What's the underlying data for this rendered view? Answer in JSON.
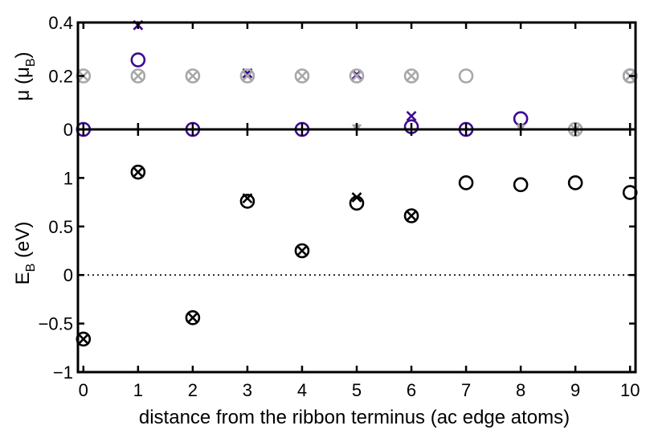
{
  "chart_data": [
    {
      "type": "scatter",
      "panel": "top",
      "ylabel": "μ",
      "ylabel_paren": "μ",
      "ylabel_sub": "B",
      "ylim": [
        0,
        0.4
      ],
      "xlim": [
        -0.1,
        10.1
      ],
      "yticks": [
        0,
        0.2,
        0.4
      ],
      "ytick_labels": [
        "0",
        "0.2",
        "0.4"
      ],
      "grid": false,
      "colors": {
        "purple": "#3d0a91",
        "gray": "#a8a8a8"
      },
      "series": [
        {
          "marker": "x",
          "color": "purple",
          "x": [
            1,
            3,
            5,
            6,
            10
          ],
          "y": [
            0.39,
            0.21,
            0.205,
            0.05,
            0.2
          ]
        },
        {
          "marker": "o",
          "color": "purple",
          "x": [
            0,
            1,
            2,
            4,
            6,
            7,
            8,
            10
          ],
          "y": [
            0,
            0.26,
            0,
            0,
            0.01,
            0,
            0.04,
            0.2
          ]
        },
        {
          "marker": "otimes",
          "color": "gray",
          "x": [
            0,
            1,
            2,
            3,
            4,
            5,
            6,
            10
          ],
          "y": [
            0.2,
            0.2,
            0.2,
            0.2,
            0.2,
            0.2,
            0.2,
            0.2
          ]
        },
        {
          "marker": "o",
          "color": "gray",
          "x": [
            7
          ],
          "y": [
            0.2
          ]
        },
        {
          "marker": "otimes",
          "color": "gray",
          "x": [
            9
          ],
          "y": [
            0
          ]
        },
        {
          "marker": "tri",
          "color": "gray",
          "x": [
            5,
            8
          ],
          "y": [
            0,
            0
          ]
        }
      ]
    },
    {
      "type": "scatter",
      "panel": "bottom",
      "xlabel": "distance from the ribbon terminus (ac edge atoms)",
      "ylabel": "E",
      "ylabel_sub": "B",
      "ylabel_suffix": " (eV)",
      "xlim": [
        -0.1,
        10.1
      ],
      "ylim": [
        -1,
        1.5
      ],
      "xticks": [
        0,
        1,
        2,
        3,
        4,
        5,
        6,
        7,
        8,
        9,
        10
      ],
      "xtick_labels": [
        "0",
        "1",
        "2",
        "3",
        "4",
        "5",
        "6",
        "7",
        "8",
        "9",
        "10"
      ],
      "yticks": [
        -1,
        -0.5,
        0,
        0.5,
        1
      ],
      "ytick_labels": [
        "−1",
        "−0.5",
        "0",
        "0.5",
        "1"
      ],
      "reference_line": {
        "y": 0,
        "style": "dotted"
      },
      "grid": false,
      "colors": {
        "black": "#000000"
      },
      "series": [
        {
          "marker": "otimes",
          "color": "black",
          "x": [
            0,
            1,
            2,
            4,
            6
          ],
          "y": [
            -0.66,
            1.06,
            -0.44,
            0.25,
            0.61
          ]
        },
        {
          "marker": "o",
          "color": "black",
          "x": [
            3,
            5,
            7,
            8,
            9,
            10
          ],
          "y": [
            0.76,
            0.74,
            0.95,
            0.93,
            0.95,
            0.85
          ]
        },
        {
          "marker": "x",
          "color": "black",
          "x": [
            3,
            5
          ],
          "y": [
            0.79,
            0.8
          ]
        }
      ]
    }
  ]
}
